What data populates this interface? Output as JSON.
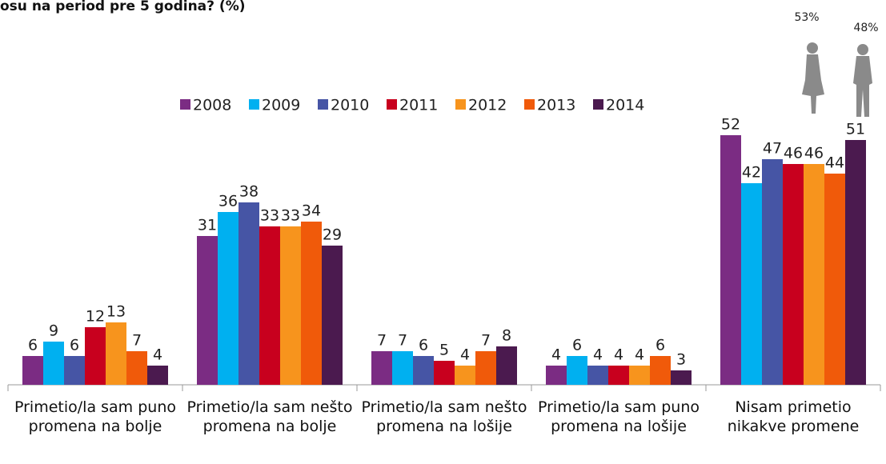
{
  "chart_data": {
    "type": "bar",
    "title": "osu na period pre 5 godina? (%)",
    "annotations": [
      "53%",
      "48%"
    ],
    "categories": [
      "Primetio/la sam puno promena na bolje",
      "Primetio/la sam nešto promena na bolje",
      "Primetio/la sam nešto promena na lošije",
      "Primetio/la sam puno promena na lošije",
      "Nisam primetio nikakve promene"
    ],
    "series": [
      {
        "name": "2008",
        "color": "#7b2c83",
        "values": [
          6,
          31,
          7,
          4,
          52
        ]
      },
      {
        "name": "2009",
        "color": "#00b0f0",
        "values": [
          9,
          36,
          7,
          6,
          42
        ]
      },
      {
        "name": "2010",
        "color": "#4655a5",
        "values": [
          6,
          38,
          6,
          4,
          47
        ]
      },
      {
        "name": "2011",
        "color": "#c8001e",
        "values": [
          12,
          33,
          5,
          4,
          46
        ]
      },
      {
        "name": "2012",
        "color": "#f7941d",
        "values": [
          13,
          33,
          4,
          4,
          46
        ]
      },
      {
        "name": "2013",
        "color": "#f05a0a",
        "values": [
          7,
          34,
          7,
          6,
          44
        ]
      },
      {
        "name": "2014",
        "color": "#4b1a4f",
        "values": [
          4,
          29,
          8,
          3,
          51
        ]
      }
    ]
  }
}
